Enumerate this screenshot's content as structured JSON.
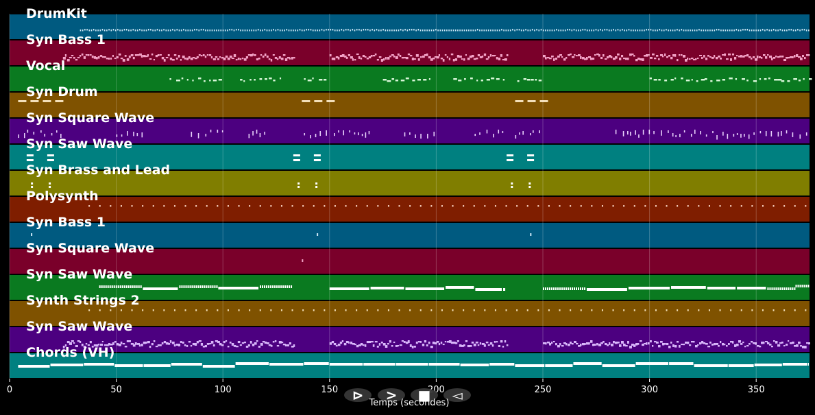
{
  "chart_data": {
    "type": "piano-roll",
    "xlabel": "Temps (secondes)",
    "xlim": [
      0,
      375
    ],
    "xticks": [
      0,
      50,
      100,
      150,
      200,
      250,
      300,
      350
    ],
    "grid": true,
    "tracks": [
      {
        "name": "DrumKit",
        "color": "#005a80",
        "note_color": "#cfe9f7",
        "sections": [
          [
            33,
            375
          ]
        ],
        "pattern": "dense-dots"
      },
      {
        "name": "Syn Bass 1",
        "color": "#7a002a",
        "note_color": "#f2a2c6",
        "sections": [
          [
            25,
            133
          ],
          [
            150,
            233
          ],
          [
            250,
            375
          ]
        ],
        "pattern": "dense-dashes"
      },
      {
        "name": "Vocal",
        "color": "#0a7a20",
        "note_color": "#d7f5d7",
        "sections": [
          [
            75,
            98
          ],
          [
            108,
            128
          ],
          [
            138,
            150
          ],
          [
            175,
            198
          ],
          [
            208,
            232
          ],
          [
            238,
            250
          ],
          [
            300,
            375
          ]
        ],
        "pattern": "sparse-dashes"
      },
      {
        "name": "Syn Drum",
        "color": "#7f5200",
        "note_color": "#f3dfb8",
        "sections": [
          [
            4,
            25
          ],
          [
            137,
            150
          ],
          [
            237,
            250
          ]
        ],
        "pattern": "long-dashes"
      },
      {
        "name": "Syn Square Wave",
        "color": "#4c0080",
        "note_color": "#e8d2fb",
        "sections": [
          [
            4,
            25
          ],
          [
            50,
            65
          ],
          [
            85,
            100
          ],
          [
            112,
            120
          ],
          [
            138,
            150
          ],
          [
            152,
            170
          ],
          [
            185,
            200
          ],
          [
            218,
            232
          ],
          [
            237,
            250
          ],
          [
            284,
            375
          ]
        ],
        "pattern": "ticks"
      },
      {
        "name": "Syn Saw Wave",
        "color": "#008080",
        "note_color": "#ffffff",
        "sections": [
          [
            8,
            20
          ],
          [
            133,
            145
          ],
          [
            233,
            245
          ]
        ],
        "pattern": "blocks"
      },
      {
        "name": "Syn Brass and Lead",
        "color": "#807e00",
        "note_color": "#ffffff",
        "sections": [
          [
            10,
            20
          ],
          [
            135,
            145
          ],
          [
            235,
            245
          ]
        ],
        "pattern": "dots-pairs"
      },
      {
        "name": "Polysynth",
        "color": "#7f1e00",
        "note_color": "#f3c9b8",
        "sections": [
          [
            37,
            375
          ]
        ],
        "pattern": "regular-dots"
      },
      {
        "name": "Syn Bass 1",
        "color": "#005a80",
        "note_color": "#cfe9f7",
        "sections": [
          [
            10,
            11
          ],
          [
            144,
            145
          ],
          [
            244,
            245
          ]
        ],
        "pattern": "single"
      },
      {
        "name": "Syn Square Wave",
        "color": "#7a002a",
        "note_color": "#f2a2c6",
        "sections": [
          [
            137,
            138
          ]
        ],
        "pattern": "single"
      },
      {
        "name": "Syn Saw Wave",
        "color": "#0a7a20",
        "note_color": "#ffffff",
        "sections": [
          [
            42,
            133
          ],
          [
            150,
            233
          ],
          [
            250,
            375
          ]
        ],
        "pattern": "melody"
      },
      {
        "name": "Synth Strings 2",
        "color": "#7f5200",
        "note_color": "#f3dfb8",
        "sections": [
          [
            37,
            375
          ]
        ],
        "pattern": "regular-dots"
      },
      {
        "name": "Syn Saw Wave",
        "color": "#4c0080",
        "note_color": "#d8b6fa",
        "sections": [
          [
            25,
            133
          ],
          [
            150,
            233
          ],
          [
            250,
            375
          ]
        ],
        "pattern": "dense-dashes"
      },
      {
        "name": "Chords (VH)",
        "color": "#008080",
        "note_color": "#ffffff",
        "sections": [
          [
            4,
            375
          ]
        ],
        "pattern": "chords"
      }
    ]
  },
  "controls": [
    {
      "name": "play-forward",
      "glyph": "⊳"
    },
    {
      "name": "fast-forward",
      "glyph": ">"
    },
    {
      "name": "stop",
      "glyph": "■"
    },
    {
      "name": "rewind",
      "glyph": "◅"
    }
  ]
}
